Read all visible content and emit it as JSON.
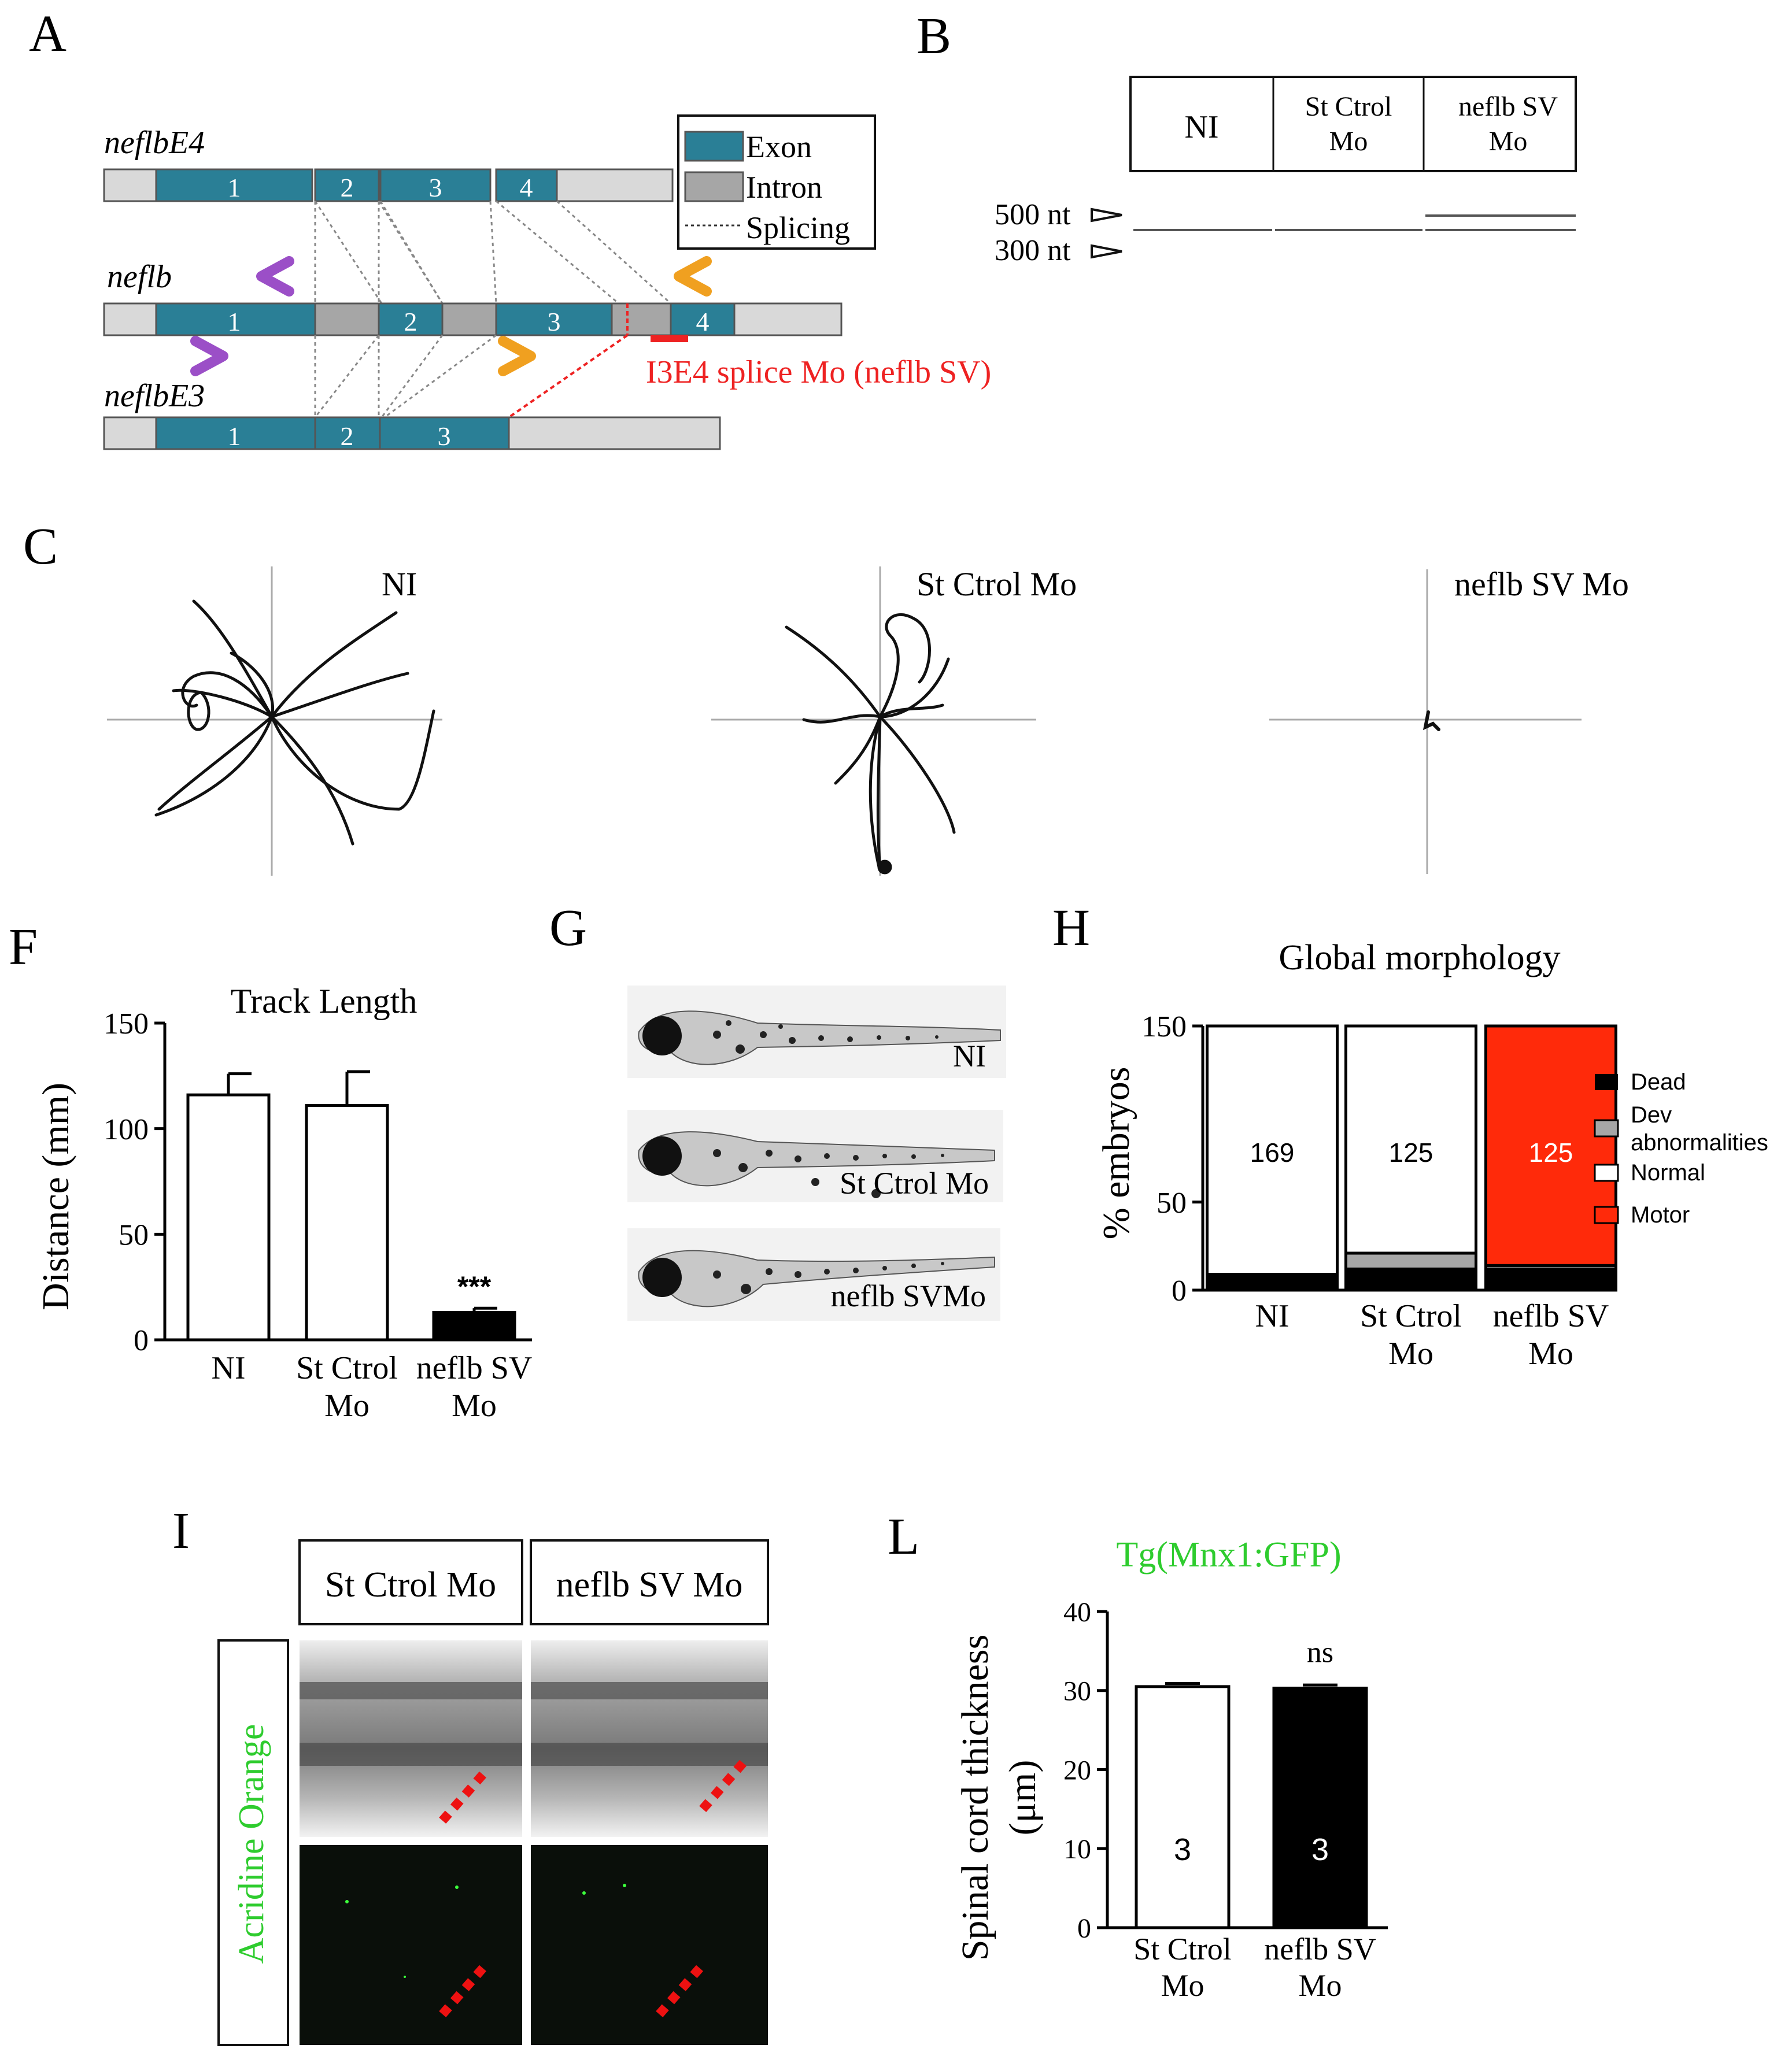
{
  "panels": {
    "a": "A",
    "b": "B",
    "c": "C",
    "f": "F",
    "g": "G",
    "h": "H",
    "i": "I",
    "l": "L"
  },
  "panel_a": {
    "gene_e4": "neflbE4",
    "gene_full": "neflb",
    "gene_e3": "neflbE3",
    "exons_e4": [
      "1",
      "2",
      "3",
      "4"
    ],
    "exons_full": [
      "1",
      "2",
      "3",
      "4"
    ],
    "exons_e3": [
      "1",
      "2",
      "3"
    ],
    "legend": {
      "exon": "Exon",
      "intron": "Intron",
      "splicing": "Splicing"
    },
    "morpholino_label": "I3E4 splice Mo (neflb SV)",
    "colors": {
      "exon": "#2a7f96",
      "intron": "#a6a6a6",
      "utr": "#d9d9d9",
      "primer_purple": "#9b4fc7",
      "primer_orange": "#f0a020",
      "morpholino": "#ee2222"
    }
  },
  "panel_b": {
    "lanes": [
      "NI",
      "St Ctrol\nMo",
      "neflb SV\nMo"
    ],
    "lane_lines": [
      [
        "St Ctrol",
        "Mo"
      ],
      [
        "neflb SV",
        "Mo"
      ]
    ],
    "markers": [
      "500 nt",
      "300 nt"
    ]
  },
  "panel_c": {
    "conditions": [
      "NI",
      "St Ctrol Mo",
      "neflb SV Mo"
    ]
  },
  "chart_data": [
    {
      "id": "F",
      "type": "bar",
      "title": "Track Length",
      "ylabel": "Distance (mm)",
      "categories": [
        [
          "NI"
        ],
        [
          "St Ctrol",
          "Mo"
        ],
        [
          "neflb SV",
          "Mo"
        ]
      ],
      "values": [
        116,
        111,
        13
      ],
      "errors": [
        10,
        16,
        2
      ],
      "colors": [
        "#ffffff",
        "#ffffff",
        "#000000"
      ],
      "ylim": [
        0,
        150
      ],
      "yticks": [
        "0",
        "50",
        "100",
        "150"
      ],
      "annotation": "***"
    },
    {
      "id": "H",
      "type": "bar",
      "title": "Global morphology",
      "ylabel": "% embryos",
      "stacked": true,
      "categories": [
        [
          "NI"
        ],
        [
          "St Ctrol",
          "Mo"
        ],
        [
          "neflb SV",
          "Mo"
        ]
      ],
      "ylim": [
        0,
        150
      ],
      "yticks": [
        "0",
        "50",
        "150"
      ],
      "series": [
        {
          "name": "Dead",
          "color": "#000000",
          "values": [
            9,
            12,
            12
          ]
        },
        {
          "name": "Dev abnormalities",
          "color": "#a6a6a6",
          "values": [
            0,
            9,
            2
          ]
        },
        {
          "name": "Normal",
          "color": "#ffffff",
          "values": [
            141,
            129,
            0
          ]
        },
        {
          "name": "Motor",
          "color": "#ff2a0a",
          "values": [
            0,
            0,
            136
          ]
        }
      ],
      "legend_lines": [
        [
          "Dead"
        ],
        [
          "Dev",
          "abnormalities"
        ],
        [
          "Normal"
        ],
        [
          "Motor"
        ]
      ],
      "n_labels": [
        "169",
        "125",
        "125"
      ]
    },
    {
      "id": "L",
      "type": "bar",
      "title": "Tg(Mnx1:GFP)",
      "ylabel_lines": [
        "Spinal cord thickness",
        "(μm)"
      ],
      "categories": [
        [
          "St Ctrol",
          "Mo"
        ],
        [
          "neflb SV",
          "Mo"
        ]
      ],
      "values": [
        30.5,
        30.3
      ],
      "errors": [
        0.4,
        0.4
      ],
      "colors": [
        "#ffffff",
        "#000000"
      ],
      "ylim": [
        0,
        40
      ],
      "yticks": [
        "0",
        "10",
        "20",
        "30",
        "40"
      ],
      "n_labels": [
        "3",
        "3"
      ],
      "annotation": "ns"
    }
  ],
  "panel_g": {
    "labels": [
      "NI",
      "St Ctrol Mo",
      "neflb SVMo"
    ]
  },
  "panel_i": {
    "headers": [
      "St Ctrol Mo",
      "neflb SV Mo"
    ],
    "row_label": "Acridine Orange",
    "label_color": "#2ecc2e"
  }
}
